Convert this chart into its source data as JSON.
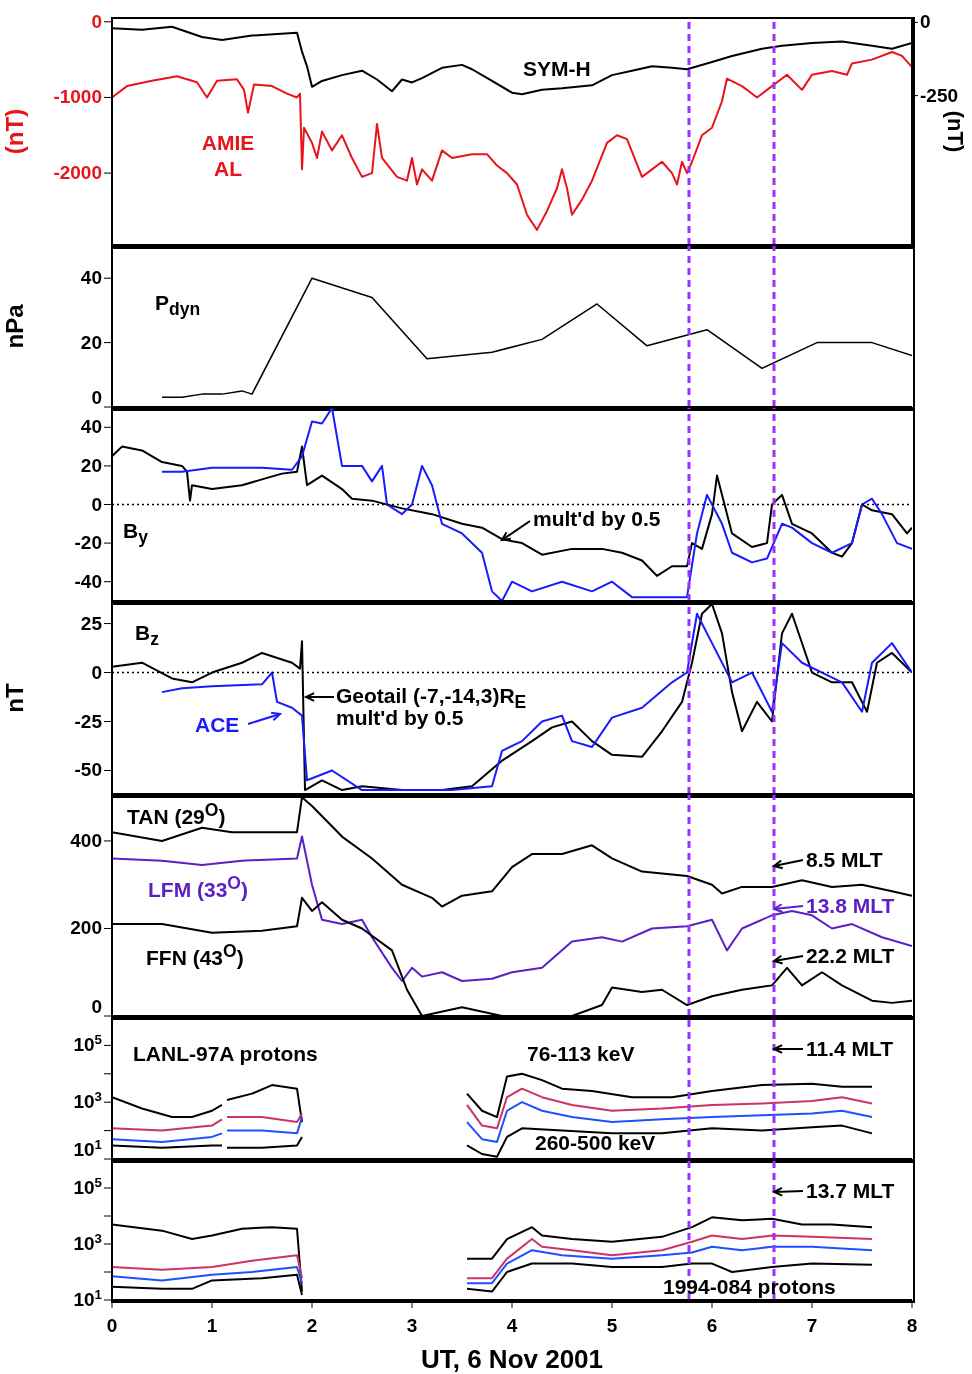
{
  "chart_data": [
    {
      "type": "line",
      "xlim": [
        0,
        8
      ],
      "xticks": [
        0,
        1,
        2,
        3,
        4,
        5,
        6,
        7,
        8
      ],
      "tick_labels": "y",
      "ylim": [
        -2950,
        50
      ],
      "yticks": [
        0,
        -1000,
        -2000
      ],
      "y2lim": [
        -760,
        15
      ],
      "y2ticks": [
        0,
        -250
      ],
      "ylabel": "(nT)",
      "y2label": "(nT)",
      "series": [
        {
          "name": "AMIE AL",
          "color": "#e8141c",
          "x": [
            0,
            0.15,
            0.4,
            0.65,
            0.85,
            0.95,
            1.05,
            1.25,
            1.32,
            1.36,
            1.42,
            1.6,
            1.75,
            1.85,
            1.88,
            1.9,
            1.92,
            2.0,
            2.05,
            2.1,
            2.2,
            2.3,
            2.4,
            2.5,
            2.6,
            2.65,
            2.7,
            2.85,
            2.95,
            3.0,
            3.05,
            3.1,
            3.2,
            3.3,
            3.4,
            3.6,
            3.75,
            3.85,
            3.95,
            4.05,
            4.15,
            4.25,
            4.35,
            4.45,
            4.5,
            4.55,
            4.6,
            4.7,
            4.8,
            4.95,
            5.05,
            5.15,
            5.3,
            5.4,
            5.5,
            5.6,
            5.65,
            5.7,
            5.75,
            5.8,
            5.9,
            6.0,
            6.1,
            6.15,
            6.3,
            6.45,
            6.6,
            6.75,
            6.9,
            7.0,
            7.2,
            7.35,
            7.4,
            7.6,
            7.8,
            7.9,
            8.0
          ],
          "values": [
            -1000,
            -850,
            -780,
            -720,
            -800,
            -1000,
            -780,
            -760,
            -900,
            -1200,
            -830,
            -850,
            -950,
            -1000,
            -950,
            -1950,
            -1400,
            -1600,
            -1800,
            -1450,
            -1700,
            -1500,
            -1800,
            -2050,
            -2000,
            -1350,
            -1800,
            -2050,
            -2100,
            -1800,
            -2150,
            -1950,
            -2100,
            -1700,
            -1800,
            -1750,
            -1750,
            -1900,
            -2000,
            -2150,
            -2550,
            -2750,
            -2500,
            -2200,
            -1950,
            -2200,
            -2550,
            -2350,
            -2100,
            -1600,
            -1500,
            -1550,
            -2050,
            -1950,
            -1850,
            -2000,
            -2150,
            -1850,
            -2000,
            -1850,
            -1500,
            -1400,
            -1050,
            -750,
            -850,
            -1000,
            -850,
            -700,
            -900,
            -700,
            -650,
            -700,
            -550,
            -500,
            -400,
            -450,
            -600
          ]
        },
        {
          "name": "SYM-H",
          "color": "#000000",
          "axis": "y2",
          "x": [
            0,
            0.3,
            0.6,
            0.9,
            1.1,
            1.4,
            1.85,
            1.9,
            1.95,
            2.0,
            2.1,
            2.3,
            2.5,
            2.65,
            2.8,
            2.9,
            3.0,
            3.1,
            3.3,
            3.5,
            3.6,
            3.8,
            4.0,
            4.1,
            4.3,
            4.5,
            4.8,
            5.0,
            5.2,
            5.4,
            5.6,
            5.75,
            6.0,
            6.2,
            6.5,
            6.7,
            7.0,
            7.3,
            7.6,
            7.8,
            8.0
          ],
          "values": [
            -20,
            -25,
            -15,
            -50,
            -60,
            -45,
            -35,
            -100,
            -150,
            -220,
            -200,
            -180,
            -165,
            -195,
            -235,
            -195,
            -205,
            -190,
            -155,
            -145,
            -160,
            -200,
            -240,
            -245,
            -230,
            -225,
            -215,
            -180,
            -165,
            -150,
            -155,
            -160,
            -135,
            -115,
            -90,
            -80,
            -70,
            -65,
            -80,
            -90,
            -70
          ]
        }
      ],
      "ref_lines": [
        {
          "axis": "x",
          "value": 5.77,
          "color": "#9b30ff",
          "line_style": "dashed"
        },
        {
          "axis": "x",
          "value": 6.62,
          "color": "#9b30ff",
          "line_style": "dashed"
        }
      ]
    },
    {
      "type": "line",
      "xlim": [
        0,
        8
      ],
      "xticks": [
        0,
        1,
        2,
        3,
        4,
        5,
        6,
        7,
        8
      ],
      "tick_labels": "y",
      "ylim": [
        0,
        50
      ],
      "yticks": [
        0,
        20,
        40
      ],
      "ylabel": "nPa",
      "series": [
        {
          "name": "P$_{dyn}$",
          "color": "#000000",
          "x": [
            0.5,
            0.7,
            0.9,
            1.1,
            1.3,
            1.4,
            2.0,
            2.6,
            3.15,
            3.8,
            4.3,
            4.85,
            5.35,
            5.95,
            6.5,
            7.05,
            7.6,
            8.0
          ],
          "values": [
            3,
            3,
            4,
            4,
            5,
            4,
            40,
            34,
            15,
            17,
            21,
            32,
            19,
            24,
            12,
            20,
            20,
            16
          ]
        }
      ],
      "ref_lines": [
        {
          "axis": "x",
          "value": 5.77,
          "color": "#9b30ff",
          "line_style": "dashed"
        },
        {
          "axis": "x",
          "value": 6.62,
          "color": "#9b30ff",
          "line_style": "dashed"
        }
      ]
    },
    {
      "type": "line",
      "title": "B$_{y}$",
      "xlim": [
        0,
        8
      ],
      "xticks": [
        0,
        1,
        2,
        3,
        4,
        5,
        6,
        7,
        8
      ],
      "tick_labels": "y",
      "ylim": [
        -50,
        50
      ],
      "yticks": [
        -40,
        -20,
        0,
        20,
        40
      ],
      "series": [
        {
          "color": "#000000",
          "x": [
            0,
            0.1,
            0.3,
            0.5,
            0.7,
            0.75,
            0.78,
            0.8,
            1.0,
            1.3,
            1.5,
            1.7,
            1.85,
            1.9,
            1.95,
            2.1,
            2.3,
            2.4,
            2.6,
            2.9,
            3.2,
            3.5,
            3.7,
            3.9,
            4.1,
            4.3,
            4.6,
            4.9,
            5.1,
            5.3,
            5.45,
            5.6,
            5.75,
            5.8,
            5.9,
            6.0,
            6.05,
            6.1,
            6.2,
            6.4,
            6.55,
            6.6,
            6.7,
            6.8,
            7.0,
            7.2,
            7.3,
            7.4,
            7.5,
            7.6,
            7.8,
            7.95,
            8.0
          ],
          "values": [
            25,
            30,
            28,
            22,
            20,
            17,
            2,
            10,
            8,
            10,
            13,
            16,
            17,
            30,
            10,
            15,
            8,
            3,
            2,
            -2,
            -5,
            -10,
            -12,
            -18,
            -20,
            -26,
            -23,
            -23,
            -25,
            -29,
            -37,
            -32,
            -32,
            -20,
            -23,
            -5,
            15,
            5,
            -15,
            -22,
            -20,
            0,
            5,
            -10,
            -15,
            -25,
            -27,
            -20,
            0,
            -3,
            -5,
            -15,
            -12
          ]
        },
        {
          "color": "#1a1aff",
          "x": [
            0.5,
            0.7,
            1.0,
            1.5,
            1.8,
            1.9,
            2.0,
            2.1,
            2.2,
            2.3,
            2.5,
            2.6,
            2.7,
            2.75,
            2.9,
            3.0,
            3.1,
            3.2,
            3.3,
            3.5,
            3.7,
            3.8,
            3.9,
            4.0,
            4.2,
            4.5,
            4.8,
            5.0,
            5.2,
            5.5,
            5.75,
            5.85,
            5.95,
            6.1,
            6.2,
            6.4,
            6.55,
            6.7,
            6.8,
            7.0,
            7.2,
            7.4,
            7.5,
            7.6,
            7.7,
            7.85,
            8.0
          ],
          "values": [
            17,
            17,
            19,
            19,
            18,
            25,
            43,
            42,
            50,
            20,
            20,
            12,
            20,
            0,
            -5,
            0,
            20,
            10,
            -10,
            -15,
            -25,
            -45,
            -50,
            -40,
            -45,
            -40,
            -45,
            -40,
            -48,
            -48,
            -48,
            -15,
            5,
            -10,
            -25,
            -30,
            -28,
            -10,
            -12,
            -20,
            -25,
            -20,
            0,
            3,
            -5,
            -20,
            -23
          ]
        }
      ],
      "annotations": [
        "mult'd by 0.5"
      ],
      "ref_lines": [
        {
          "axis": "y",
          "value": 0,
          "color": "#000000",
          "line_style": "dotted"
        },
        {
          "axis": "x",
          "value": 5.77,
          "color": "#9b30ff",
          "line_style": "dashed"
        },
        {
          "axis": "x",
          "value": 6.62,
          "color": "#9b30ff",
          "line_style": "dashed"
        }
      ]
    },
    {
      "type": "line",
      "title": "B$_{z}$",
      "xlim": [
        0,
        8
      ],
      "xticks": [
        0,
        1,
        2,
        3,
        4,
        5,
        6,
        7,
        8
      ],
      "tick_labels": "y",
      "ylim": [
        -62,
        36
      ],
      "yticks": [
        -50,
        -25,
        0,
        25
      ],
      "ylabel": "nT",
      "series": [
        {
          "name": "Geotail (-7,-14,3)R$_{E}$",
          "color": "#000000",
          "x": [
            0,
            0.3,
            0.6,
            0.8,
            1.0,
            1.3,
            1.5,
            1.8,
            1.88,
            1.9,
            1.93,
            2.1,
            2.3,
            2.5,
            2.9,
            3.3,
            3.6,
            3.9,
            4.2,
            4.4,
            4.6,
            4.8,
            5.0,
            5.3,
            5.5,
            5.7,
            5.8,
            5.9,
            6.0,
            6.1,
            6.2,
            6.3,
            6.45,
            6.6,
            6.7,
            6.8,
            7.0,
            7.2,
            7.4,
            7.55,
            7.65,
            7.8,
            8.0
          ],
          "values": [
            3,
            5,
            -3,
            -5,
            0,
            5,
            10,
            5,
            2,
            16,
            -60,
            -55,
            -60,
            -58,
            -60,
            -60,
            -58,
            -45,
            -35,
            -28,
            -25,
            -35,
            -42,
            -43,
            -30,
            -15,
            5,
            30,
            35,
            20,
            -10,
            -30,
            -15,
            -25,
            20,
            30,
            0,
            -5,
            -5,
            -20,
            5,
            10,
            0
          ]
        },
        {
          "name": "ACE",
          "color": "#1a1aff",
          "x": [
            0.5,
            0.7,
            1.0,
            1.5,
            1.6,
            1.65,
            1.8,
            1.9,
            1.95,
            2.2,
            2.5,
            3.0,
            3.4,
            3.8,
            3.9,
            4.1,
            4.3,
            4.5,
            4.6,
            4.8,
            5.0,
            5.3,
            5.6,
            5.75,
            5.85,
            6.0,
            6.2,
            6.4,
            6.6,
            6.7,
            6.9,
            7.1,
            7.3,
            7.5,
            7.6,
            7.8,
            8.0
          ],
          "values": [
            -10,
            -8,
            -7,
            -6,
            0,
            -15,
            -18,
            -22,
            -55,
            -50,
            -60,
            -60,
            -60,
            -58,
            -40,
            -35,
            -25,
            -22,
            -35,
            -38,
            -23,
            -18,
            -5,
            0,
            30,
            15,
            -5,
            0,
            -20,
            15,
            5,
            0,
            -5,
            -20,
            5,
            15,
            0
          ]
        }
      ],
      "annotations": [
        "mult'd by 0.5"
      ],
      "ref_lines": [
        {
          "axis": "y",
          "value": 0,
          "color": "#000000",
          "line_style": "dotted"
        },
        {
          "axis": "x",
          "value": 5.77,
          "color": "#9b30ff",
          "line_style": "dashed"
        },
        {
          "axis": "x",
          "value": 6.62,
          "color": "#9b30ff",
          "line_style": "dashed"
        }
      ]
    },
    {
      "type": "line",
      "xlim": [
        0,
        8
      ],
      "xticks": [
        0,
        1,
        2,
        3,
        4,
        5,
        6,
        7,
        8
      ],
      "tick_labels": "y",
      "ylim": [
        0,
        505
      ],
      "yticks": [
        0,
        200,
        400
      ],
      "series": [
        {
          "name": "TAN (29$^{O}$)",
          "color": "#000000",
          "x": [
            0,
            0.5,
            0.9,
            1.2,
            1.85,
            1.9,
            2.0,
            2.3,
            2.6,
            2.9,
            3.2,
            3.3,
            3.5,
            3.8,
            4.0,
            4.2,
            4.5,
            4.8,
            5.0,
            5.3,
            5.75,
            6.0,
            6.1,
            6.3,
            6.6,
            6.9,
            7.2,
            7.5,
            7.8,
            8.0
          ],
          "values": [
            420,
            400,
            430,
            420,
            420,
            500,
            480,
            410,
            360,
            300,
            270,
            250,
            275,
            285,
            340,
            370,
            370,
            390,
            360,
            330,
            320,
            300,
            280,
            295,
            295,
            310,
            295,
            300,
            285,
            275
          ]
        },
        {
          "name": "LFM (33$^{O}$)",
          "color": "#5b1fc4",
          "x": [
            0,
            0.5,
            0.9,
            1.3,
            1.85,
            1.9,
            2.0,
            2.1,
            2.3,
            2.5,
            2.6,
            2.8,
            2.9,
            3.0,
            3.1,
            3.3,
            3.5,
            3.8,
            4.0,
            4.3,
            4.6,
            4.9,
            5.1,
            5.4,
            5.75,
            6.0,
            6.15,
            6.3,
            6.6,
            6.8,
            7.0,
            7.2,
            7.4,
            7.7,
            8.0
          ],
          "values": [
            360,
            355,
            345,
            355,
            360,
            410,
            300,
            220,
            210,
            220,
            180,
            110,
            80,
            110,
            90,
            100,
            80,
            85,
            100,
            110,
            170,
            180,
            170,
            200,
            205,
            220,
            150,
            200,
            230,
            240,
            230,
            200,
            210,
            180,
            160
          ]
        },
        {
          "name": "FFN (43$^{O}$)",
          "color": "#000000",
          "x": [
            0,
            0.5,
            1.0,
            1.5,
            1.85,
            1.9,
            2.0,
            2.1,
            2.3,
            2.5,
            2.8,
            2.95,
            3.1,
            3.5,
            3.9,
            4.2,
            4.6,
            4.9,
            5.0,
            5.3,
            5.5,
            5.75,
            6.0,
            6.3,
            6.6,
            6.75,
            6.9,
            7.1,
            7.3,
            7.6,
            7.8,
            8.0
          ],
          "values": [
            210,
            210,
            190,
            195,
            205,
            270,
            240,
            260,
            220,
            200,
            150,
            60,
            0,
            20,
            0,
            0,
            0,
            25,
            65,
            55,
            60,
            25,
            45,
            60,
            70,
            110,
            70,
            100,
            70,
            35,
            30,
            35
          ]
        }
      ],
      "annotations": [
        "8.5 MLT",
        "13.8 MLT",
        "22.2 MLT"
      ],
      "ref_lines": [
        {
          "axis": "x",
          "value": 5.77,
          "color": "#9b30ff",
          "line_style": "dashed"
        },
        {
          "axis": "x",
          "value": 6.62,
          "color": "#9b30ff",
          "line_style": "dashed"
        }
      ]
    },
    {
      "type": "line",
      "log": "y",
      "xlim": [
        0,
        8
      ],
      "xticks": [
        0,
        1,
        2,
        3,
        4,
        5,
        6,
        7,
        8
      ],
      "tick_labels": "y",
      "ylim": [
        10,
        1000000
      ],
      "yticks": [
        {
          "value": 10,
          "label": "10$^{1}$"
        },
        {
          "value": 100,
          "label": null
        },
        {
          "value": 1000,
          "label": "10$^{3}$"
        },
        {
          "value": 10000,
          "label": null
        },
        {
          "value": 100000,
          "label": "10$^{5}$"
        }
      ],
      "series": [
        {
          "name": "76-113 keV",
          "color": "#000000",
          "x": [
            0,
            0.3,
            0.6,
            0.8,
            1.0,
            1.1,
            1.12,
            1.15,
            1.4,
            1.6,
            1.85,
            1.9,
            2.7,
            3.55,
            3.7,
            3.85,
            3.95,
            4.1,
            4.3,
            4.5,
            4.8,
            5.2,
            5.6,
            6.0,
            6.5,
            7.0,
            7.3,
            7.6
          ],
          "values": [
            1500,
            600,
            300,
            300,
            500,
            800,
            null,
            1200,
            2000,
            4000,
            3000,
            200,
            null,
            2000,
            500,
            300,
            8000,
            10000,
            6000,
            3000,
            2500,
            1500,
            1500,
            2500,
            4000,
            4500,
            3500,
            3500
          ]
        },
        {
          "color": "#cc3366",
          "x": [
            0,
            0.5,
            1.0,
            1.1,
            1.12,
            1.15,
            1.5,
            1.85,
            1.9,
            2.7,
            3.55,
            3.7,
            3.85,
            3.95,
            4.1,
            4.3,
            4.6,
            5.0,
            5.5,
            6.0,
            6.5,
            7.0,
            7.3,
            7.6
          ],
          "values": [
            120,
            100,
            150,
            250,
            null,
            300,
            300,
            200,
            400,
            null,
            800,
            150,
            120,
            1500,
            3000,
            1500,
            800,
            500,
            600,
            800,
            900,
            1100,
            1500,
            900
          ]
        },
        {
          "color": "#1f4fff",
          "x": [
            0,
            0.5,
            1.0,
            1.1,
            1.12,
            1.15,
            1.5,
            1.85,
            1.9,
            2.7,
            3.55,
            3.7,
            3.85,
            3.95,
            4.1,
            4.3,
            4.6,
            5.0,
            5.5,
            6.0,
            6.5,
            7.0,
            7.3,
            7.6
          ],
          "values": [
            50,
            40,
            60,
            80,
            null,
            100,
            100,
            80,
            300,
            null,
            200,
            50,
            40,
            500,
            1000,
            500,
            300,
            200,
            250,
            300,
            350,
            400,
            500,
            300
          ]
        },
        {
          "name": "260-500 keV",
          "color": "#000000",
          "x": [
            0,
            0.5,
            1.0,
            1.1,
            1.12,
            1.15,
            1.5,
            1.85,
            1.9,
            2.7,
            3.55,
            3.7,
            3.85,
            3.95,
            4.1,
            4.5,
            5.0,
            5.5,
            6.0,
            6.5,
            7.0,
            7.3,
            7.6
          ],
          "values": [
            30,
            25,
            30,
            30,
            null,
            25,
            25,
            30,
            60,
            null,
            30,
            15,
            12,
            60,
            120,
            100,
            80,
            80,
            120,
            100,
            130,
            150,
            80
          ]
        }
      ],
      "annotations": [
        "LANL-97A protons",
        "11.4 MLT"
      ],
      "ref_lines": [
        {
          "axis": "x",
          "value": 5.77,
          "color": "#9b30ff",
          "line_style": "dashed"
        },
        {
          "axis": "x",
          "value": 6.62,
          "color": "#9b30ff",
          "line_style": "dashed"
        }
      ]
    },
    {
      "type": "line",
      "log": "y",
      "xlim": [
        0,
        8
      ],
      "xticks": [
        0,
        1,
        2,
        3,
        4,
        5,
        6,
        7,
        8
      ],
      "ylim": [
        10,
        1000000
      ],
      "yticks": [
        {
          "value": 10,
          "label": "10$^{1}$"
        },
        {
          "value": 100,
          "label": null
        },
        {
          "value": 1000,
          "label": "10$^{3}$"
        },
        {
          "value": 10000,
          "label": null
        },
        {
          "value": 100000,
          "label": "10$^{5}$"
        }
      ],
      "xlabel": "UT, 6 Nov 2001",
      "series": [
        {
          "color": "#000000",
          "x": [
            0,
            0.5,
            0.8,
            1.0,
            1.3,
            1.6,
            1.85,
            1.9,
            2.7,
            3.55,
            3.8,
            3.95,
            4.2,
            4.3,
            4.6,
            5.0,
            5.5,
            5.8,
            6.0,
            6.3,
            6.6,
            6.9,
            7.2,
            7.6
          ],
          "values": [
            5000,
            3000,
            1500,
            2000,
            3500,
            4000,
            3500,
            20,
            null,
            300,
            300,
            1500,
            4000,
            2000,
            1500,
            1200,
            1800,
            4000,
            9000,
            7000,
            8000,
            5000,
            5000,
            4000
          ]
        },
        {
          "color": "#cc3366",
          "x": [
            0,
            0.5,
            1.0,
            1.4,
            1.85,
            1.9,
            2.7,
            3.55,
            3.8,
            3.95,
            4.2,
            4.3,
            4.6,
            5.0,
            5.5,
            5.8,
            6.0,
            6.3,
            6.6,
            7.0,
            7.6
          ],
          "values": [
            150,
            120,
            150,
            250,
            400,
            60,
            null,
            60,
            60,
            300,
            1500,
            800,
            600,
            400,
            600,
            1200,
            2000,
            1500,
            2000,
            1800,
            1500
          ]
        },
        {
          "color": "#1f4fff",
          "x": [
            0,
            0.5,
            1.0,
            1.4,
            1.85,
            1.9,
            2.7,
            3.55,
            3.8,
            3.95,
            4.2,
            4.5,
            5.0,
            5.5,
            5.8,
            6.0,
            6.3,
            6.6,
            7.0,
            7.6
          ],
          "values": [
            70,
            50,
            80,
            100,
            150,
            40,
            null,
            40,
            40,
            200,
            600,
            400,
            300,
            400,
            500,
            800,
            600,
            800,
            800,
            600
          ]
        },
        {
          "color": "#000000",
          "x": [
            0,
            0.5,
            0.8,
            1.0,
            1.5,
            1.85,
            1.9,
            2.7,
            3.55,
            3.8,
            3.95,
            4.2,
            4.6,
            5.0,
            5.5,
            5.8,
            6.0,
            6.2,
            6.6,
            7.0,
            7.6
          ],
          "values": [
            30,
            25,
            25,
            50,
            60,
            80,
            15,
            null,
            25,
            20,
            100,
            200,
            200,
            150,
            150,
            200,
            200,
            100,
            150,
            200,
            180
          ]
        }
      ],
      "annotations": [
        "13.7 MLT",
        "1994-084 protons"
      ],
      "ref_lines": [
        {
          "axis": "x",
          "value": 5.77,
          "color": "#9b30ff",
          "line_style": "dashed"
        },
        {
          "axis": "x",
          "value": 6.62,
          "color": "#9b30ff",
          "line_style": "dashed"
        }
      ]
    }
  ]
}
